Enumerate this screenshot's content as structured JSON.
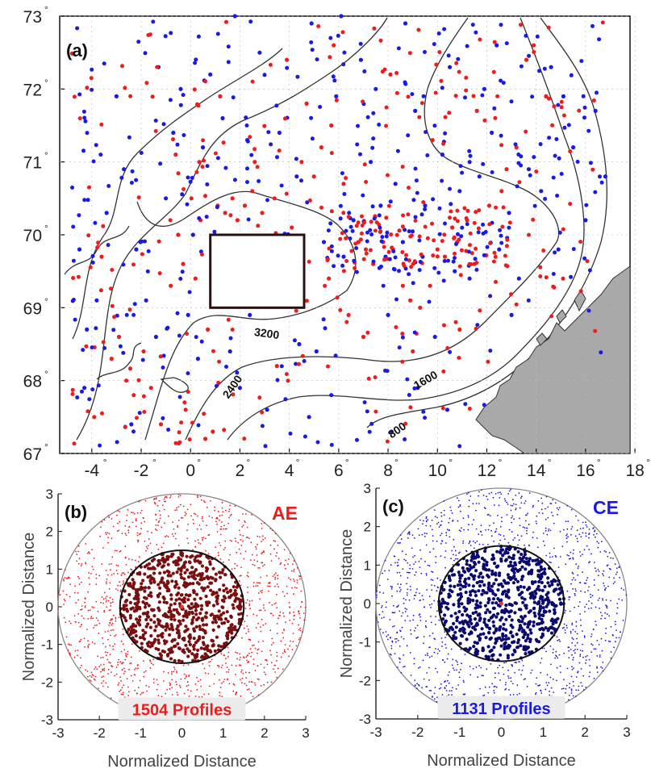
{
  "colors": {
    "ae": "#ee1c1c",
    "ce": "#1a1ae6",
    "ae_core": "#7a0f0f",
    "ce_core": "#0a0a6e",
    "land": "#a9a9a9",
    "contour": "#333333"
  },
  "chart_data": [
    {
      "type": "scatter",
      "panel": "(a)",
      "x_ticks": [
        "-4",
        "-2",
        "0",
        "2",
        "4",
        "6",
        "8",
        "10",
        "12",
        "14",
        "16",
        "18"
      ],
      "y_ticks": [
        "67",
        "68",
        "69",
        "70",
        "71",
        "72",
        "73"
      ],
      "xlim": [
        -5.3,
        17.8
      ],
      "ylim": [
        67,
        73
      ],
      "box": {
        "lon": [
          0.8,
          4.6
        ],
        "lat": [
          69.0,
          70.0
        ]
      },
      "contour_labels": [
        "3200",
        "2400",
        "1600",
        "800"
      ],
      "series": [
        {
          "color": "ae",
          "points": [
            [
              -3.6,
              69.7
            ],
            [
              -3.2,
              68.3
            ],
            [
              -2.6,
              68.0
            ],
            [
              -2.3,
              67.8
            ],
            [
              -1.9,
              68.4
            ],
            [
              -1.6,
              67.9
            ],
            [
              -1.2,
              67.4
            ],
            [
              -0.8,
              69.3
            ],
            [
              -0.5,
              70.0
            ],
            [
              -0.3,
              69.6
            ],
            [
              0.2,
              69.4
            ],
            [
              0.4,
              70.2
            ],
            [
              0.7,
              68.7
            ],
            [
              0.9,
              67.3
            ],
            [
              1.1,
              70.4
            ],
            [
              1.4,
              70.3
            ],
            [
              1.7,
              70.5
            ],
            [
              1.9,
              70.2
            ],
            [
              2.2,
              70.4
            ],
            [
              2.5,
              70.6
            ],
            [
              2.9,
              70.3
            ],
            [
              3.4,
              70.5
            ],
            [
              4.1,
              70.1
            ],
            [
              4.5,
              71.0
            ],
            [
              5.0,
              70.8
            ],
            [
              5.3,
              71.2
            ],
            [
              5.7,
              71.5
            ],
            [
              6.2,
              70.7
            ],
            [
              6.8,
              69.9
            ],
            [
              7.1,
              69.8
            ],
            [
              7.4,
              69.6
            ],
            [
              7.8,
              69.9
            ],
            [
              8.2,
              69.8
            ],
            [
              8.6,
              69.3
            ],
            [
              8.9,
              69.1
            ],
            [
              9.3,
              69.0
            ],
            [
              9.7,
              69.3
            ],
            [
              10.0,
              69.8
            ],
            [
              10.3,
              69.7
            ],
            [
              10.6,
              70.1
            ],
            [
              10.8,
              69.9
            ],
            [
              11.2,
              70.2
            ],
            [
              11.5,
              69.6
            ],
            [
              12.1,
              70.4
            ],
            [
              12.6,
              70.6
            ],
            [
              13.2,
              71.2
            ],
            [
              13.6,
              72.4
            ],
            [
              13.9,
              72.6
            ],
            [
              14.4,
              71.9
            ],
            [
              4.7,
              71.8
            ],
            [
              5.8,
              72.6
            ],
            [
              3.9,
              72.4
            ],
            [
              1.2,
              71.9
            ],
            [
              -0.6,
              71.1
            ],
            [
              2.6,
              71.0
            ],
            [
              6.4,
              68.9
            ],
            [
              7.0,
              68.6
            ],
            [
              9.0,
              68.4
            ],
            [
              10.9,
              68.7
            ],
            [
              -3.9,
              67.5
            ],
            [
              -2.9,
              68.6
            ],
            [
              -0.2,
              67.6
            ],
            [
              0.6,
              67.2
            ],
            [
              8.1,
              72.2
            ],
            [
              9.8,
              71.3
            ],
            [
              11.6,
              71.7
            ],
            [
              12.8,
              70.9
            ],
            [
              3.5,
              68.2
            ],
            [
              5.6,
              69.4
            ]
          ]
        },
        {
          "color": "ce",
          "points": [
            [
              -4.5,
              69.8
            ],
            [
              -4.2,
              68.7
            ],
            [
              -3.8,
              69.1
            ],
            [
              -3.4,
              70.3
            ],
            [
              -2.7,
              70.9
            ],
            [
              -2.2,
              69.8
            ],
            [
              -1.8,
              69.1
            ],
            [
              -1.4,
              68.6
            ],
            [
              -1.0,
              70.5
            ],
            [
              -0.7,
              71.4
            ],
            [
              -0.4,
              72.0
            ],
            [
              -0.1,
              68.9
            ],
            [
              0.3,
              68.3
            ],
            [
              0.5,
              71.2
            ],
            [
              0.8,
              72.2
            ],
            [
              1.3,
              71.6
            ],
            [
              1.6,
              68.4
            ],
            [
              2.0,
              67.9
            ],
            [
              2.4,
              68.9
            ],
            [
              2.8,
              72.5
            ],
            [
              3.1,
              67.6
            ],
            [
              3.6,
              71.4
            ],
            [
              4.0,
              69.3
            ],
            [
              4.3,
              70.8
            ],
            [
              4.8,
              67.5
            ],
            [
              5.1,
              68.4
            ],
            [
              5.4,
              69.9
            ],
            [
              5.9,
              71.9
            ],
            [
              6.1,
              73.0
            ],
            [
              6.6,
              70.2
            ],
            [
              6.9,
              72.4
            ],
            [
              7.3,
              71.0
            ],
            [
              7.7,
              70.4
            ],
            [
              8.0,
              68.9
            ],
            [
              8.3,
              70.7
            ],
            [
              8.7,
              72.9
            ],
            [
              9.1,
              71.7
            ],
            [
              9.5,
              70.4
            ],
            [
              9.9,
              68.6
            ],
            [
              10.2,
              71.1
            ],
            [
              10.5,
              72.3
            ],
            [
              10.9,
              70.6
            ],
            [
              11.3,
              69.4
            ],
            [
              11.7,
              70.8
            ],
            [
              12.2,
              71.4
            ],
            [
              12.5,
              69.8
            ],
            [
              12.9,
              70.3
            ],
            [
              13.3,
              69.4
            ],
            [
              13.7,
              70.9
            ],
            [
              14.2,
              70.6
            ],
            [
              14.6,
              72.3
            ],
            [
              15.1,
              71.9
            ],
            [
              15.5,
              71.2
            ],
            [
              16.0,
              70.2
            ],
            [
              16.4,
              71.7
            ],
            [
              16.8,
              70.8
            ],
            [
              -2.4,
              67.4
            ],
            [
              -4.3,
              67.9
            ],
            [
              1.8,
              73.0
            ],
            [
              4.9,
              72.9
            ],
            [
              7.5,
              72.0
            ],
            [
              6.2,
              69.7
            ],
            [
              7.9,
              69.7
            ],
            [
              8.6,
              69.9
            ],
            [
              9.4,
              69.7
            ],
            [
              10.7,
              69.5
            ],
            [
              3.7,
              69.9
            ],
            [
              0.1,
              70.0
            ],
            [
              -3.0,
              71.9
            ],
            [
              11.9,
              72.0
            ],
            [
              14.9,
              69.8
            ],
            [
              13.0,
              68.9
            ],
            [
              4.4,
              68.5
            ],
            [
              5.7,
              67.8
            ],
            [
              9.2,
              67.9
            ],
            [
              10.4,
              67.6
            ],
            [
              2.3,
              71.3
            ],
            [
              -1.3,
              72.3
            ],
            [
              12.4,
              72.6
            ]
          ]
        }
      ]
    },
    {
      "type": "scatter",
      "panel": "(b)",
      "tag": "AE",
      "xlabel": "Normalized Distance",
      "ylabel": "Normalized Distance",
      "ticks": [
        "-3",
        "-2",
        "-1",
        "0",
        "1",
        "2",
        "3"
      ],
      "xlim": [
        -3,
        3
      ],
      "ylim": [
        -3,
        3
      ],
      "inner_radius": 1.5,
      "outer_radius": 3,
      "profiles_label": "1504 Profiles",
      "profiles": 1504
    },
    {
      "type": "scatter",
      "panel": "(c)",
      "tag": "CE",
      "xlabel": "Normalized Distance",
      "ylabel": "Normalized Distance",
      "ticks": [
        "-3",
        "-2",
        "-1",
        "0",
        "1",
        "2",
        "3"
      ],
      "xlim": [
        -3,
        3
      ],
      "ylim": [
        -3,
        3
      ],
      "inner_radius": 1.5,
      "outer_radius": 3,
      "profiles_label": "1131 Profiles",
      "profiles": 1131
    }
  ]
}
